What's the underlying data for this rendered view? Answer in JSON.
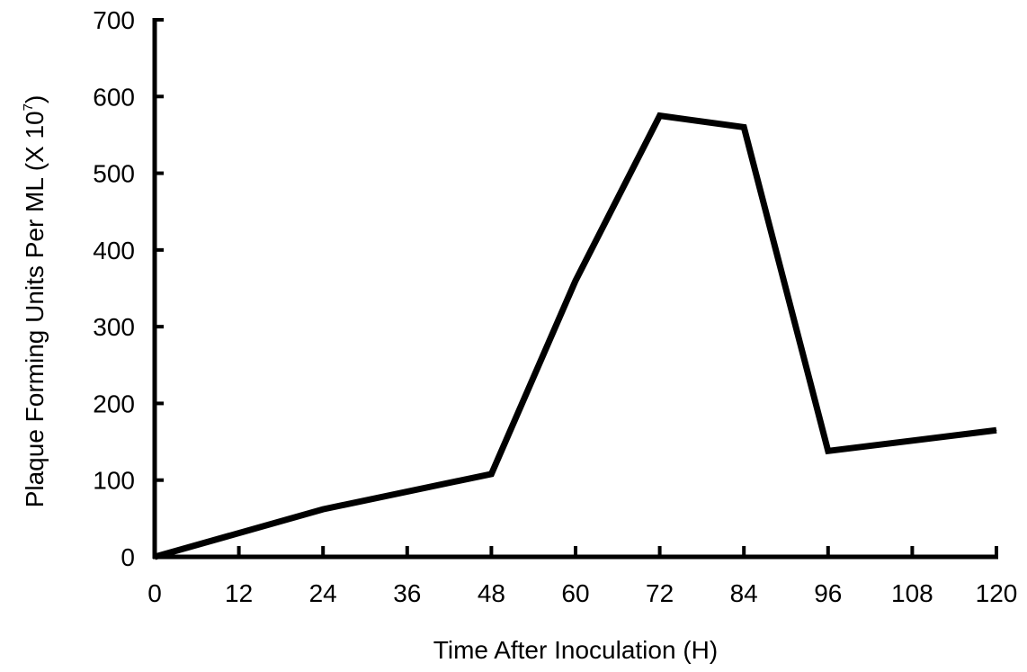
{
  "chart_data": {
    "type": "line",
    "title": "",
    "xlabel": "Time After Inoculation (H)",
    "ylabel_main": "Plaque Forming Units Per ML (X 10",
    "ylabel_exponent": "7",
    "ylabel_close": ")",
    "xlim": [
      0,
      120
    ],
    "ylim": [
      0,
      700
    ],
    "xticks": [
      0,
      12,
      24,
      36,
      48,
      60,
      72,
      84,
      96,
      108,
      120
    ],
    "yticks": [
      0,
      100,
      200,
      300,
      400,
      500,
      600,
      700
    ],
    "grid": false,
    "series": [
      {
        "color": "#000000",
        "x": [
          0,
          24,
          48,
          60,
          72,
          84,
          96,
          120
        ],
        "y": [
          0,
          62,
          108,
          360,
          575,
          560,
          138,
          165
        ]
      }
    ]
  }
}
